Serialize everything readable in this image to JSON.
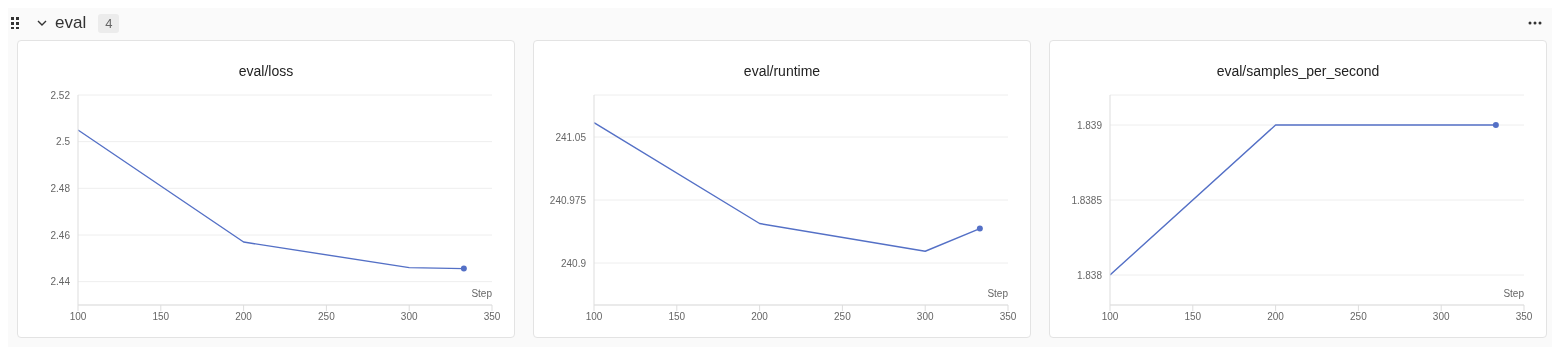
{
  "chart_data": [
    {
      "type": "other",
      "title": "eval",
      "annotations": [
        "4"
      ]
    },
    {
      "type": "line",
      "title": "eval/loss",
      "xlabel": "Step",
      "x": [
        100,
        200,
        300,
        333
      ],
      "values": [
        2.505,
        2.457,
        2.446,
        2.4456
      ],
      "color": "#5470c6",
      "xlim": [
        100,
        350
      ],
      "xticks": [
        100,
        150,
        200,
        250,
        300,
        350
      ],
      "ylim": [
        2.43,
        2.52
      ],
      "yticks": [
        2.44,
        2.46,
        2.48,
        2.5,
        2.52
      ],
      "grid": "y"
    },
    {
      "type": "line",
      "title": "eval/runtime",
      "xlabel": "Step",
      "x": [
        100,
        200,
        300,
        333
      ],
      "values": [
        241.067,
        240.947,
        240.914,
        240.941
      ],
      "color": "#5470c6",
      "xlim": [
        100,
        350
      ],
      "xticks": [
        100,
        150,
        200,
        250,
        300,
        350
      ],
      "ylim": [
        240.85,
        241.1
      ],
      "yticks": [
        240.9,
        240.975,
        241.05
      ],
      "grid": "y"
    },
    {
      "type": "line",
      "title": "eval/samples_per_second",
      "xlabel": "Step",
      "x": [
        100,
        200,
        333
      ],
      "values": [
        1.838,
        1.839,
        1.839
      ],
      "color": "#5470c6",
      "xlim": [
        100,
        350
      ],
      "xticks": [
        100,
        150,
        200,
        250,
        300,
        350
      ],
      "ylim": [
        1.8378,
        1.8392
      ],
      "yticks": [
        1.838,
        1.8385,
        1.839
      ],
      "grid": "y"
    }
  ]
}
